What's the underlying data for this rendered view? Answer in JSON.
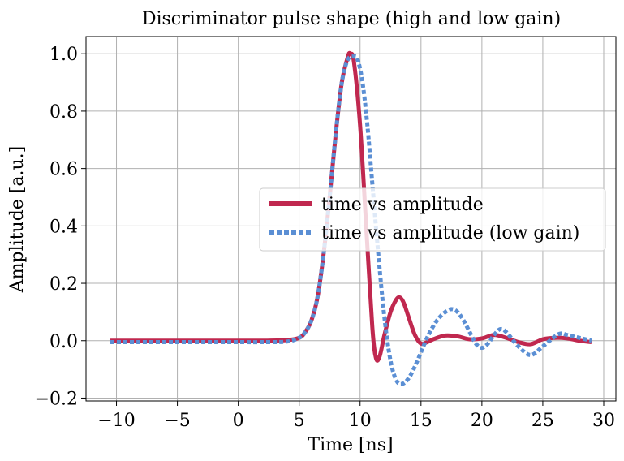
{
  "chart_data": {
    "type": "line",
    "title": "Discriminator pulse shape (high and low gain)",
    "xlabel": "Time [ns]",
    "ylabel": "Amplitude [a.u.]",
    "xlim": [
      -12.5,
      31
    ],
    "ylim": [
      -0.21,
      1.06
    ],
    "xticks": [
      -10,
      -5,
      0,
      5,
      10,
      15,
      20,
      25,
      30
    ],
    "yticks": [
      -0.2,
      0.0,
      0.2,
      0.4,
      0.6,
      0.8,
      1.0
    ],
    "xtick_labels": [
      "−10",
      "−5",
      "0",
      "5",
      "10",
      "15",
      "20",
      "25",
      "30"
    ],
    "ytick_labels": [
      "−0.2",
      "0.0",
      "0.2",
      "0.4",
      "0.6",
      "0.8",
      "1.0"
    ],
    "grid": true,
    "legend_position": "center-right",
    "series": [
      {
        "name": "time vs amplitude",
        "color": "#c0284f",
        "style": "solid",
        "x": [
          -10.5,
          -8,
          -5,
          -2,
          0,
          2,
          4,
          5,
          5.5,
          6,
          6.5,
          7,
          7.5,
          8,
          8.5,
          9,
          9.2,
          9.5,
          10,
          10.5,
          11,
          11.3,
          11.6,
          12,
          12.5,
          13,
          13.3,
          13.6,
          14,
          14.5,
          15,
          15.5,
          16,
          17,
          18,
          19,
          20,
          21,
          22,
          23,
          24,
          25,
          26,
          27,
          28,
          29
        ],
        "y": [
          0,
          0,
          0,
          0,
          0,
          0,
          0.002,
          0.01,
          0.03,
          0.07,
          0.15,
          0.3,
          0.5,
          0.72,
          0.9,
          0.99,
          1.0,
          0.97,
          0.75,
          0.4,
          0.05,
          -0.06,
          -0.055,
          0.02,
          0.1,
          0.145,
          0.15,
          0.13,
          0.08,
          0.02,
          -0.01,
          -0.005,
          0.005,
          0.018,
          0.015,
          0.005,
          0.008,
          0.02,
          0.01,
          -0.005,
          -0.012,
          0.005,
          0.01,
          0.008,
          0.0,
          -0.005
        ]
      },
      {
        "name": "time vs amplitude (low gain)",
        "color": "#5b8fd4",
        "style": "dotted",
        "x": [
          -10.5,
          -8,
          -5,
          -2,
          0,
          2,
          4,
          5,
          5.5,
          6,
          6.5,
          7,
          7.5,
          8,
          8.5,
          9,
          9.5,
          9.8,
          10.2,
          10.6,
          11,
          11.5,
          12,
          12.5,
          13,
          13.5,
          14,
          14.5,
          15,
          15.5,
          16,
          16.5,
          17,
          17.5,
          18,
          18.5,
          19,
          19.5,
          20,
          20.5,
          21,
          21.5,
          22,
          23,
          24,
          25,
          26,
          26.5,
          27,
          28,
          29
        ],
        "y": [
          -0.005,
          -0.005,
          -0.005,
          -0.005,
          -0.005,
          -0.005,
          -0.003,
          0.01,
          0.03,
          0.07,
          0.15,
          0.3,
          0.5,
          0.72,
          0.9,
          0.98,
          0.99,
          0.98,
          0.9,
          0.75,
          0.55,
          0.3,
          0.08,
          -0.07,
          -0.14,
          -0.15,
          -0.13,
          -0.09,
          -0.04,
          0.01,
          0.05,
          0.08,
          0.1,
          0.11,
          0.1,
          0.07,
          0.03,
          -0.01,
          -0.025,
          -0.01,
          0.02,
          0.04,
          0.03,
          -0.02,
          -0.05,
          -0.02,
          0.015,
          0.025,
          0.02,
          0.01,
          0.0
        ]
      }
    ]
  }
}
